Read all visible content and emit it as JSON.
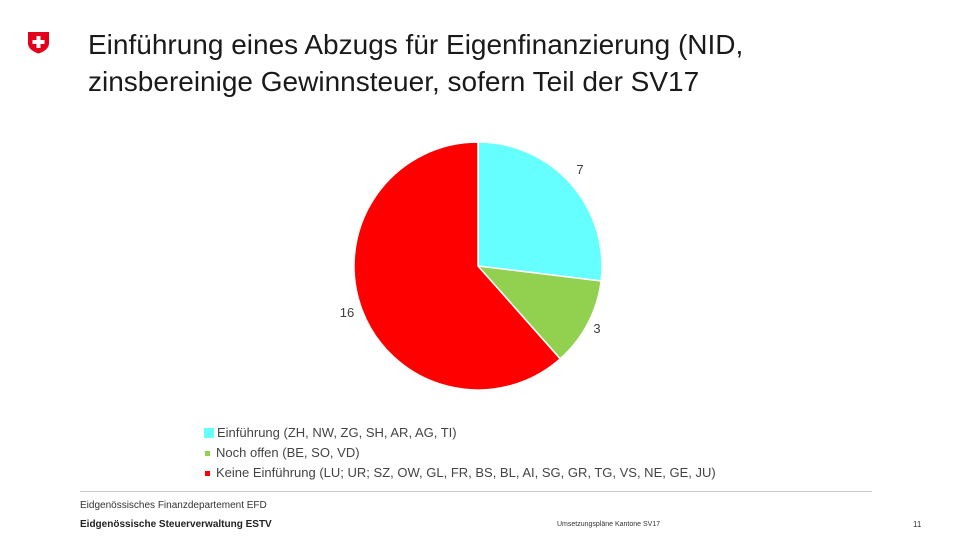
{
  "header": {
    "title_line1": "Einführung eines Abzugs für Eigenfinanzierung (NID,",
    "title_line2": "zinsbereinige Gewinnsteuer, sofern Teil der SV17",
    "logo_icon": "swiss-cross-icon"
  },
  "chart_data": {
    "type": "pie",
    "title": "",
    "start_angle_deg": 0,
    "direction": "clockwise",
    "slices": [
      {
        "label": "Einführung (ZH, NW, ZG, SH, AR, AG, TI)",
        "value": 7,
        "color": "#66FFFF"
      },
      {
        "label": "Noch offen (BE, SO, VD)",
        "value": 3,
        "color": "#92D050"
      },
      {
        "label": "Keine Einführung (LU; UR; SZ, OW, GL, FR, BS, BL, AI, SG, GR, TG, VS, NE, GE, JU)",
        "value": 16,
        "color": "#FF0000"
      }
    ],
    "data_labels": [
      "7",
      "3",
      "16"
    ],
    "legend_position": "bottom"
  },
  "footer": {
    "department": "Eidgenössisches Finanzdepartement EFD",
    "office": "Eidgenössische Steuerverwaltung ESTV",
    "document": "Umsetzungspläne Kantone SV17",
    "page_number": "11"
  },
  "colors": {
    "brand_red": "#E2001A"
  }
}
